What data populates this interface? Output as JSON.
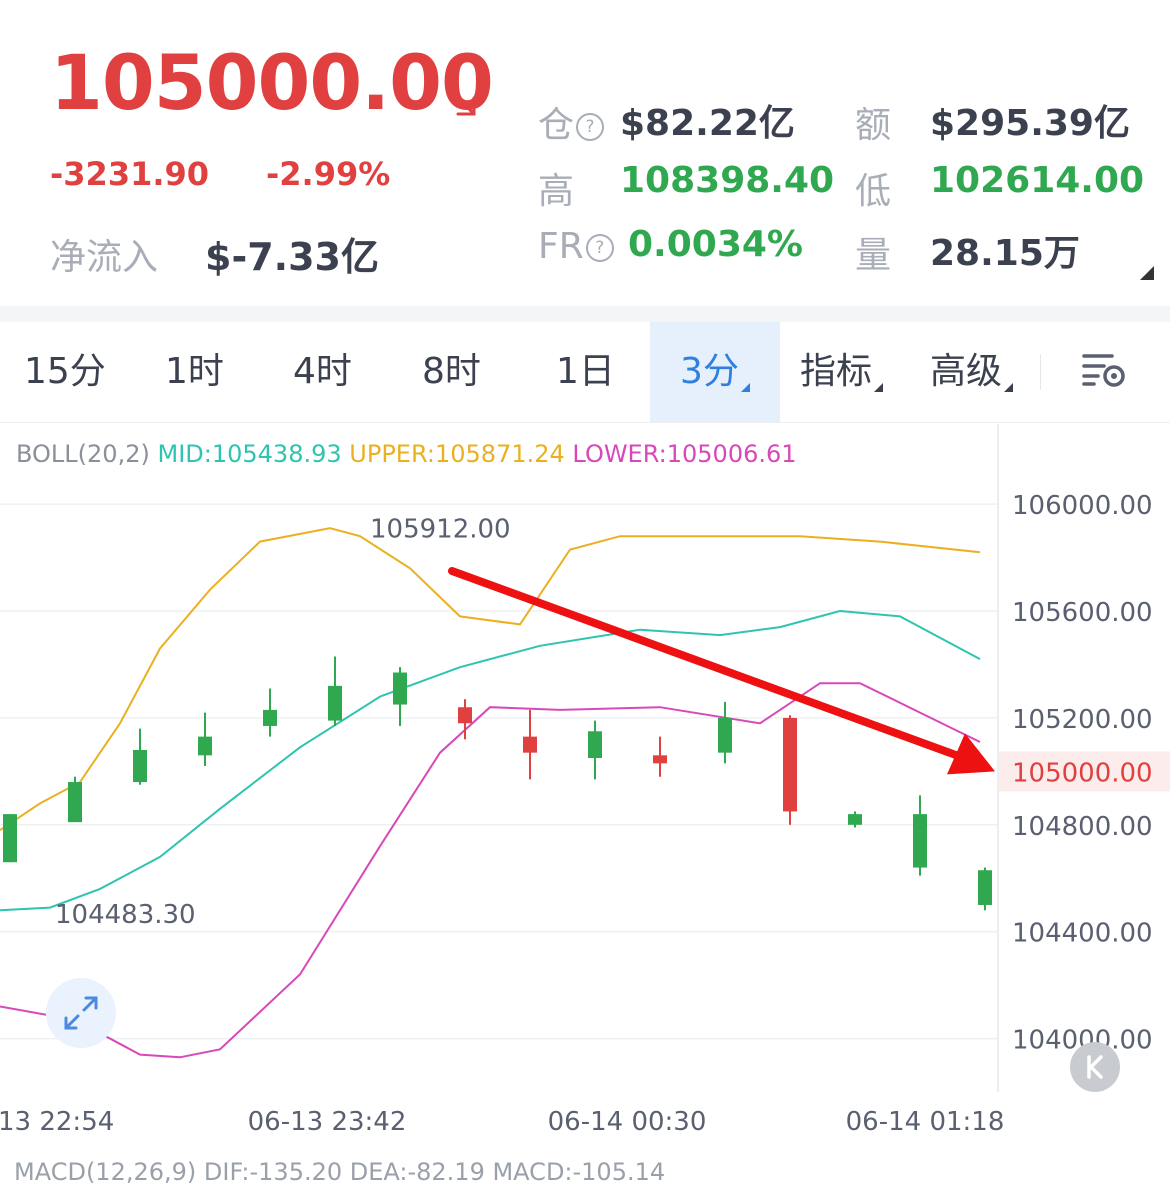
{
  "ticker": {
    "price": "105000.00",
    "change": "-3231.90",
    "change_pct": "-2.99%",
    "net_inflow_label": "净流入",
    "net_inflow_value": "$-7.33亿",
    "trend_icon": "arrow-down-right-icon",
    "colors": {
      "down": "#e04040",
      "up": "#2fa84f",
      "label": "#a8adb8",
      "value": "#3c4150"
    }
  },
  "stats": {
    "position_label": "仓",
    "position_value": "$82.22亿",
    "turnover_label": "额",
    "turnover_value": "$295.39亿",
    "high_label": "高",
    "high_value": "108398.40",
    "low_label": "低",
    "low_value": "102614.00",
    "fr_label": "FR",
    "fr_value": "0.0034%",
    "volume_label": "量",
    "volume_value": "28.15万",
    "help_glyph": "?"
  },
  "tabs": [
    {
      "label": "15分",
      "active": false
    },
    {
      "label": "1时",
      "active": false
    },
    {
      "label": "4时",
      "active": false
    },
    {
      "label": "8时",
      "active": false
    },
    {
      "label": "1日",
      "active": false
    },
    {
      "label": "3分",
      "active": true
    },
    {
      "label": "指标",
      "active": false
    },
    {
      "label": "高级",
      "active": false
    }
  ],
  "indicator": {
    "name": "BOLL(20,2)",
    "mid_label": "MID:",
    "mid_value": "105438.93",
    "upper_label": "UPPER:",
    "upper_value": "105871.24",
    "lower_label": "LOWER:",
    "lower_value": "105006.61",
    "colors": {
      "name": "#8a909a",
      "mid": "#2ec4b0",
      "upper": "#eab020",
      "lower": "#d848b8"
    }
  },
  "macd_partial": "MACD(12,26,9)  DIF:-135.20  DEA:-82.19  MACD:-105.14",
  "chart_data": {
    "type": "candlestick",
    "y_ticks": [
      "106000.00",
      "105600.00",
      "105200.00",
      "104800.00",
      "104400.00",
      "104000.00"
    ],
    "x_ticks": [
      "13 22:54",
      "06-13 23:42",
      "06-14 00:30",
      "06-14 01:18"
    ],
    "current_price_label": "105000.00",
    "high_marker": "105912.00",
    "low_marker": "104483.30",
    "y_range": [
      103830,
      106300
    ],
    "candles": [
      [
        104660,
        104840,
        104660,
        104840
      ],
      [
        104810,
        104980,
        104820,
        104960
      ],
      [
        104960,
        105160,
        104950,
        105080
      ],
      [
        105060,
        105220,
        105020,
        105130
      ],
      [
        105170,
        105310,
        105130,
        105230
      ],
      [
        105190,
        105430,
        105170,
        105320
      ],
      [
        105250,
        105390,
        105170,
        105370
      ],
      [
        105240,
        105270,
        105120,
        105180
      ],
      [
        105130,
        105230,
        104970,
        105070
      ],
      [
        105050,
        105190,
        104970,
        105150
      ],
      [
        105060,
        105130,
        104980,
        105030
      ],
      [
        105070,
        105260,
        105030,
        105200
      ],
      [
        105200,
        105210,
        104800,
        104850
      ],
      [
        104800,
        104850,
        104790,
        104840
      ],
      [
        104640,
        104910,
        104610,
        104840
      ],
      [
        104500,
        104640,
        104480,
        104630
      ]
    ],
    "boll_upper": [
      [
        0,
        104780
      ],
      [
        40,
        104880
      ],
      [
        80,
        104960
      ],
      [
        120,
        105180
      ],
      [
        160,
        105460
      ],
      [
        210,
        105680
      ],
      [
        260,
        105860
      ],
      [
        330,
        105910
      ],
      [
        360,
        105880
      ],
      [
        410,
        105760
      ],
      [
        460,
        105580
      ],
      [
        520,
        105550
      ],
      [
        570,
        105830
      ],
      [
        620,
        105880
      ],
      [
        680,
        105880
      ],
      [
        800,
        105880
      ],
      [
        880,
        105860
      ],
      [
        980,
        105820
      ]
    ],
    "boll_mid": [
      [
        0,
        104480
      ],
      [
        50,
        104490
      ],
      [
        100,
        104560
      ],
      [
        160,
        104680
      ],
      [
        220,
        104860
      ],
      [
        300,
        105090
      ],
      [
        380,
        105280
      ],
      [
        460,
        105390
      ],
      [
        540,
        105470
      ],
      [
        640,
        105530
      ],
      [
        720,
        105510
      ],
      [
        780,
        105540
      ],
      [
        840,
        105600
      ],
      [
        900,
        105580
      ],
      [
        980,
        105420
      ]
    ],
    "boll_lower": [
      [
        0,
        104120
      ],
      [
        60,
        104080
      ],
      [
        100,
        104020
      ],
      [
        140,
        103940
      ],
      [
        180,
        103930
      ],
      [
        220,
        103960
      ],
      [
        300,
        104240
      ],
      [
        380,
        104720
      ],
      [
        440,
        105070
      ],
      [
        490,
        105240
      ],
      [
        560,
        105230
      ],
      [
        660,
        105240
      ],
      [
        760,
        105180
      ],
      [
        820,
        105330
      ],
      [
        860,
        105330
      ],
      [
        920,
        105220
      ],
      [
        980,
        105110
      ]
    ],
    "annotation_arrow": {
      "from": [
        452,
        105750
      ],
      "to": [
        995,
        105000
      ],
      "color": "#ee1111"
    }
  }
}
